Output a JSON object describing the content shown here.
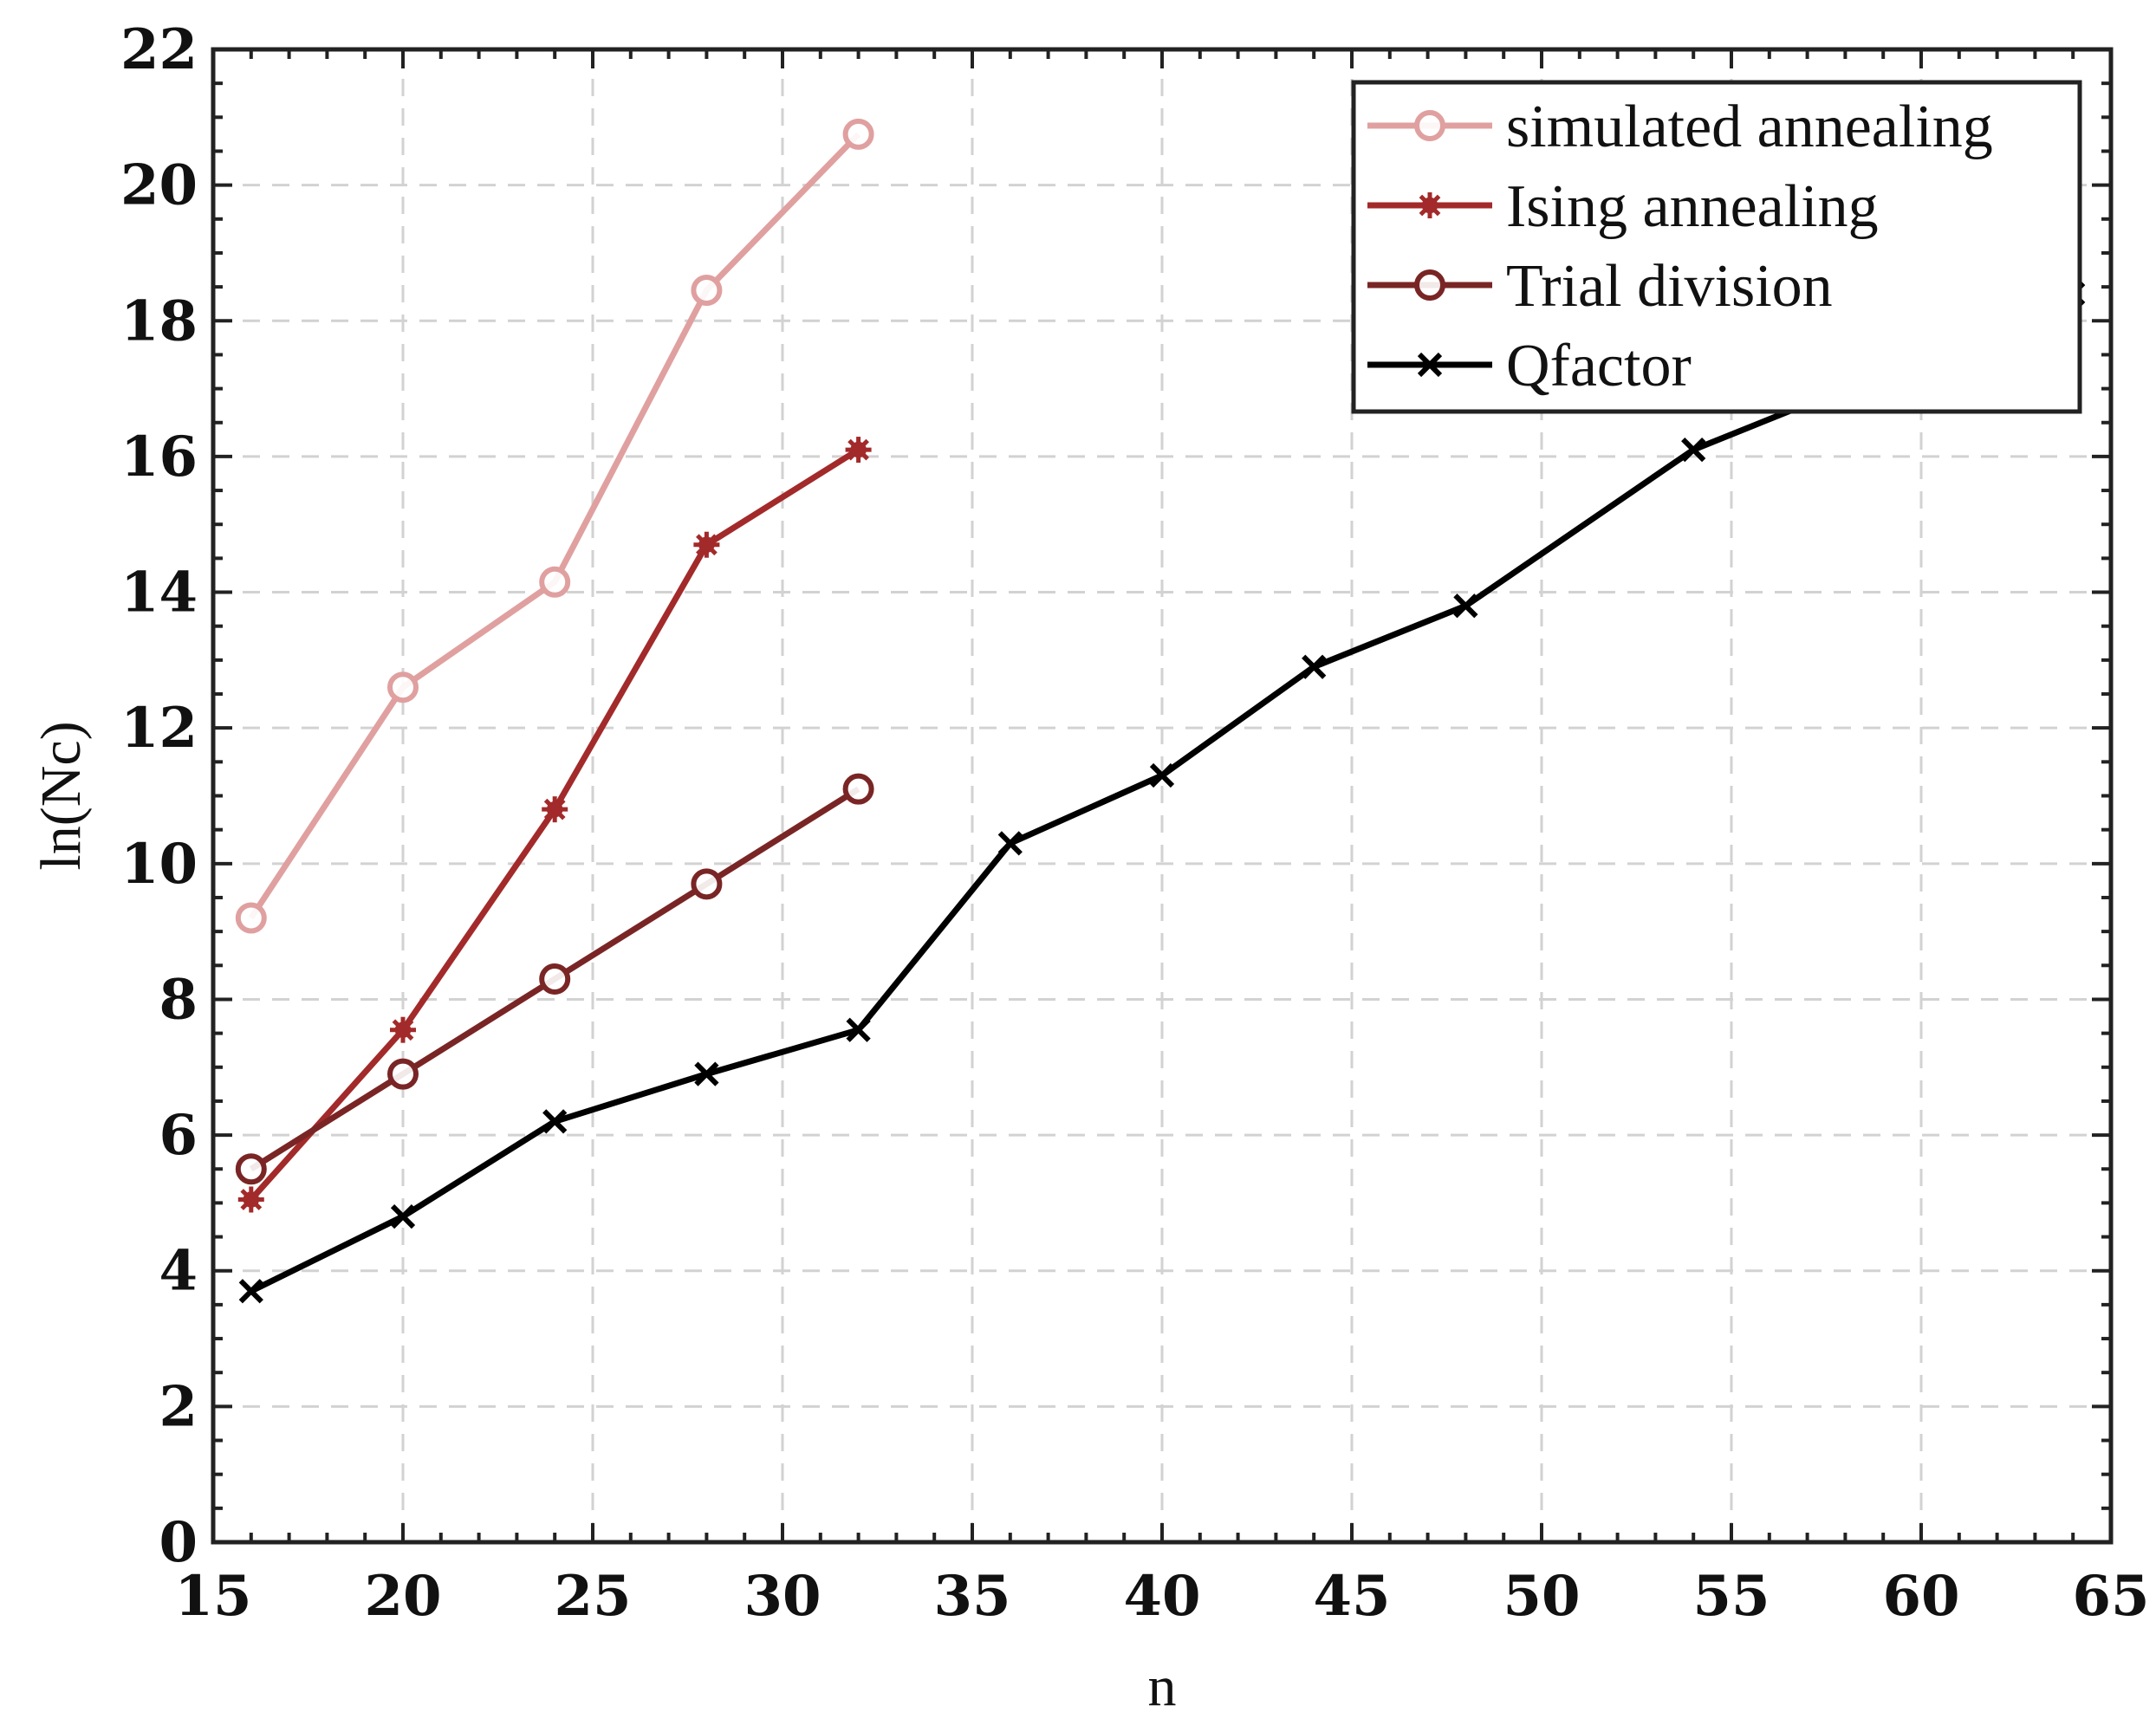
{
  "chart_data": {
    "type": "line",
    "title": "",
    "xlabel": "n",
    "ylabel": "ln(Nc)",
    "xlim": [
      15,
      65
    ],
    "ylim": [
      0,
      22
    ],
    "xticks": [
      15,
      20,
      25,
      30,
      35,
      40,
      45,
      50,
      55,
      60,
      65
    ],
    "yticks": [
      0,
      2,
      4,
      6,
      8,
      10,
      12,
      14,
      16,
      18,
      20,
      22
    ],
    "grid": true,
    "legend_position": "top-right",
    "series": [
      {
        "name": "simulated annealing",
        "color": "#e0a0a0",
        "marker": "circle",
        "x": [
          16,
          20,
          24,
          28,
          32
        ],
        "y": [
          9.2,
          12.6,
          14.15,
          18.45,
          20.75
        ]
      },
      {
        "name": "Ising annealing",
        "color": "#a32a2a",
        "marker": "star",
        "x": [
          16,
          20,
          24,
          28,
          32
        ],
        "y": [
          5.05,
          7.55,
          10.8,
          14.7,
          16.1
        ]
      },
      {
        "name": "Trial division",
        "color": "#7a2525",
        "marker": "circle",
        "x": [
          16,
          20,
          24,
          28,
          32
        ],
        "y": [
          5.5,
          6.9,
          8.3,
          9.7,
          11.1
        ]
      },
      {
        "name": "Qfactor",
        "color": "#000000",
        "marker": "x",
        "x": [
          16,
          20,
          24,
          28,
          32,
          36,
          40,
          44,
          48,
          54,
          58,
          64
        ],
        "y": [
          3.7,
          4.8,
          6.2,
          6.9,
          7.55,
          10.3,
          11.3,
          12.9,
          13.8,
          16.1,
          17.0,
          18.4
        ]
      }
    ]
  }
}
